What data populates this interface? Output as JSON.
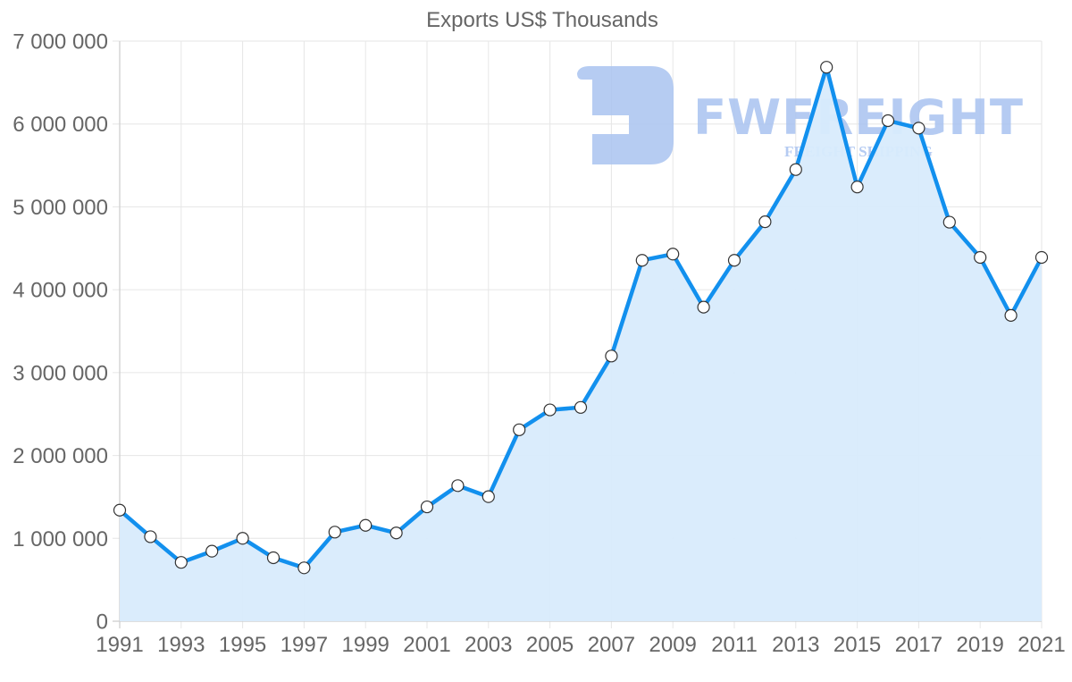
{
  "chart_data": {
    "type": "area",
    "title": "Exports US$ Thousands",
    "xlabel": "",
    "ylabel": "",
    "ylim": [
      0,
      7000000
    ],
    "xlim": [
      1991,
      2021
    ],
    "grid": true,
    "legend": null,
    "y_ticks": [
      0,
      1000000,
      2000000,
      3000000,
      4000000,
      5000000,
      6000000,
      7000000
    ],
    "y_tick_labels": [
      "0",
      "1 000 000",
      "2 000 000",
      "3 000 000",
      "4 000 000",
      "5 000 000",
      "6 000 000",
      "7 000 000"
    ],
    "x_tick_labels": [
      "1991",
      "1993",
      "1995",
      "1997",
      "1999",
      "2001",
      "2003",
      "2005",
      "2007",
      "2009",
      "2011",
      "2013",
      "2015",
      "2017",
      "2019",
      "2021"
    ],
    "categories": [
      1991,
      1992,
      1993,
      1994,
      1995,
      1996,
      1997,
      1998,
      1999,
      2000,
      2001,
      2002,
      2003,
      2004,
      2005,
      2006,
      2007,
      2008,
      2009,
      2010,
      2011,
      2012,
      2013,
      2014,
      2015,
      2016,
      2017,
      2018,
      2019,
      2020,
      2021
    ],
    "series": [
      {
        "name": "Exports US$ Thousands",
        "values": [
          1340000,
          1020000,
          710000,
          845000,
          1000000,
          766000,
          644000,
          1075000,
          1157000,
          1065000,
          1380000,
          1636000,
          1503000,
          2310000,
          2550000,
          2580000,
          3200000,
          4355000,
          4430000,
          3790000,
          4355000,
          4820000,
          5450000,
          6685000,
          5240000,
          6040000,
          5950000,
          4815000,
          4390000,
          3690000,
          4390000
        ]
      }
    ]
  },
  "watermark": {
    "brand": "FWFREIGHT",
    "tagline": "FREIGHT SHIPPING"
  },
  "colors": {
    "line": "#1290ee",
    "fill": "#d8ebfc",
    "point_fill": "#ffffff",
    "point_stroke": "#333333",
    "grid": "#e6e6e6",
    "axis": "#cccccc",
    "text": "#666666",
    "watermark": "#a9c3f0"
  }
}
